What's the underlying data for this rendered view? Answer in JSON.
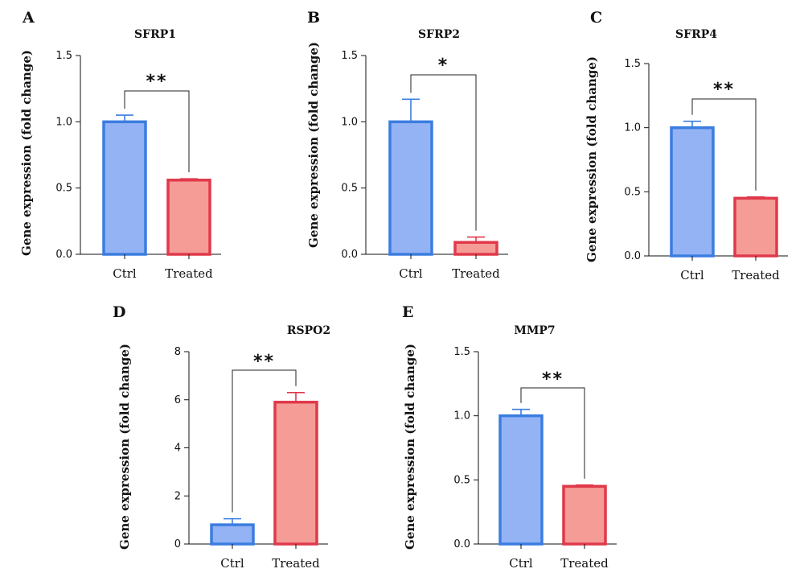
{
  "colors": {
    "ctrl_fill": "#94b3f5",
    "ctrl_stroke": "#3b7de0",
    "treated_fill": "#f59c97",
    "treated_stroke": "#e0394a"
  },
  "chart_data": [
    {
      "panel": "A",
      "type": "bar",
      "title": "SFRP1",
      "ylabel": "Gene expression (fold change)",
      "categories": [
        "Ctrl",
        "Treated"
      ],
      "values": [
        1.0,
        0.56
      ],
      "errors": [
        0.05,
        0.01
      ],
      "ylim": [
        0,
        1.5
      ],
      "yticks": [
        "0.0",
        "0.5",
        "1.0",
        "1.5"
      ],
      "significance": "**"
    },
    {
      "panel": "B",
      "type": "bar",
      "title": "SFRP2",
      "ylabel": "Gene expression (fold change)",
      "categories": [
        "Ctrl",
        "Treated"
      ],
      "values": [
        1.0,
        0.09
      ],
      "errors": [
        0.17,
        0.04
      ],
      "ylim": [
        0,
        1.5
      ],
      "yticks": [
        "0.0",
        "0.5",
        "1.0",
        "1.5"
      ],
      "significance": "*"
    },
    {
      "panel": "C",
      "type": "bar",
      "title": "SFRP4",
      "ylabel": "Gene expression (fold change)",
      "categories": [
        "Ctrl",
        "Treated"
      ],
      "values": [
        1.0,
        0.45
      ],
      "errors": [
        0.05,
        0.01
      ],
      "ylim": [
        0,
        1.5
      ],
      "yticks": [
        "0.0",
        "0.5",
        "1.0",
        "1.5"
      ],
      "significance": "**"
    },
    {
      "panel": "D",
      "type": "bar",
      "title": "RSPO2",
      "ylabel": "Gene expression (fold change)",
      "categories": [
        "Ctrl",
        "Treated"
      ],
      "values": [
        0.8,
        5.9
      ],
      "errors": [
        0.25,
        0.4
      ],
      "ylim": [
        0,
        8
      ],
      "yticks": [
        "0",
        "2",
        "4",
        "6",
        "8"
      ],
      "significance": "**"
    },
    {
      "panel": "E",
      "type": "bar",
      "title": "MMP7",
      "ylabel": "Gene expression (fold change)",
      "categories": [
        "Ctrl",
        "Treated"
      ],
      "values": [
        1.0,
        0.45
      ],
      "errors": [
        0.05,
        0.01
      ],
      "ylim": [
        0,
        1.5
      ],
      "yticks": [
        "0.0",
        "0.5",
        "1.0",
        "1.5"
      ],
      "significance": "**"
    }
  ]
}
